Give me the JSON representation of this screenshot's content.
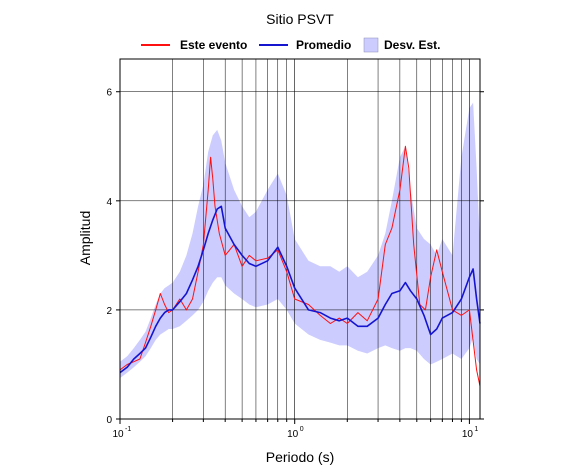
{
  "chart_data": {
    "type": "line",
    "title": "Sitio PSVT",
    "xlabel": "Periodo (s)",
    "ylabel": "Amplitud",
    "x_scale": "log",
    "xlim": [
      0.1,
      11.5
    ],
    "ylim": [
      0,
      6.6
    ],
    "grid": true,
    "legend_position": "top",
    "x_ticks": [
      {
        "base": "10",
        "exp": "-1",
        "value": 0.1
      },
      {
        "base": "10",
        "exp": "0",
        "value": 1
      },
      {
        "base": "10",
        "exp": "1",
        "value": 10
      }
    ],
    "y_ticks": [
      "0",
      "2",
      "4",
      "6"
    ],
    "y_tick_values": [
      0,
      2,
      4,
      6
    ],
    "legend": [
      {
        "label": "Este evento",
        "kind": "line",
        "color": "#ff1010"
      },
      {
        "label": "Promedio",
        "kind": "line",
        "color": "#1515d0"
      },
      {
        "label": "Desv. Est.",
        "kind": "band",
        "color": "#ccccff"
      }
    ],
    "series": [
      {
        "name": "Este evento",
        "color": "#ff1010",
        "x": [
          0.1,
          0.11,
          0.12,
          0.13,
          0.14,
          0.15,
          0.16,
          0.17,
          0.18,
          0.19,
          0.2,
          0.22,
          0.24,
          0.26,
          0.28,
          0.3,
          0.32,
          0.33,
          0.34,
          0.35,
          0.37,
          0.4,
          0.45,
          0.5,
          0.55,
          0.6,
          0.7,
          0.8,
          0.9,
          1.0,
          1.2,
          1.4,
          1.6,
          1.8,
          2.0,
          2.3,
          2.6,
          3.0,
          3.3,
          3.6,
          4.0,
          4.3,
          4.5,
          4.8,
          5.2,
          5.6,
          6.0,
          6.5,
          7.0,
          8.0,
          9.0,
          10.0,
          11.0,
          11.5
        ],
        "y": [
          0.9,
          1.0,
          1.05,
          1.1,
          1.4,
          1.7,
          2.0,
          2.3,
          2.1,
          1.95,
          2.0,
          2.2,
          2.0,
          2.2,
          2.7,
          3.2,
          4.2,
          4.8,
          4.4,
          3.9,
          3.4,
          3.0,
          3.2,
          2.8,
          3.0,
          2.9,
          2.95,
          3.1,
          2.7,
          2.2,
          2.1,
          1.9,
          1.75,
          1.85,
          1.75,
          1.95,
          1.8,
          2.2,
          3.2,
          3.5,
          4.2,
          5.0,
          4.6,
          3.2,
          2.1,
          2.0,
          2.6,
          3.1,
          2.7,
          2.0,
          1.9,
          2.0,
          0.9,
          0.6
        ]
      },
      {
        "name": "Promedio",
        "color": "#1515d0",
        "x": [
          0.1,
          0.11,
          0.12,
          0.13,
          0.14,
          0.15,
          0.16,
          0.17,
          0.18,
          0.19,
          0.2,
          0.22,
          0.24,
          0.26,
          0.28,
          0.3,
          0.32,
          0.34,
          0.36,
          0.38,
          0.4,
          0.45,
          0.5,
          0.55,
          0.6,
          0.7,
          0.8,
          0.9,
          1.0,
          1.2,
          1.4,
          1.6,
          1.8,
          2.0,
          2.3,
          2.6,
          3.0,
          3.3,
          3.6,
          4.0,
          4.3,
          4.6,
          5.0,
          5.5,
          6.0,
          6.5,
          7.0,
          8.0,
          9.0,
          10.0,
          10.5,
          11.0,
          11.5
        ],
        "y": [
          0.85,
          0.95,
          1.1,
          1.2,
          1.3,
          1.5,
          1.7,
          1.85,
          1.95,
          2.0,
          2.0,
          2.15,
          2.3,
          2.55,
          2.8,
          3.1,
          3.4,
          3.65,
          3.85,
          3.9,
          3.5,
          3.2,
          3.0,
          2.85,
          2.8,
          2.9,
          3.15,
          2.8,
          2.4,
          2.0,
          1.95,
          1.85,
          1.8,
          1.85,
          1.7,
          1.7,
          1.85,
          2.1,
          2.3,
          2.35,
          2.5,
          2.35,
          2.2,
          1.9,
          1.55,
          1.65,
          1.85,
          1.95,
          2.2,
          2.6,
          2.75,
          2.2,
          1.75
        ]
      }
    ],
    "band": {
      "name": "Desv. Est.",
      "color": "#ccccff",
      "x": [
        0.1,
        0.11,
        0.12,
        0.13,
        0.14,
        0.15,
        0.16,
        0.17,
        0.18,
        0.19,
        0.2,
        0.22,
        0.24,
        0.26,
        0.28,
        0.3,
        0.32,
        0.34,
        0.36,
        0.38,
        0.4,
        0.45,
        0.5,
        0.55,
        0.6,
        0.7,
        0.8,
        0.9,
        1.0,
        1.2,
        1.4,
        1.6,
        1.8,
        2.0,
        2.3,
        2.6,
        3.0,
        3.3,
        3.6,
        4.0,
        4.3,
        4.6,
        5.0,
        5.5,
        6.0,
        6.5,
        7.0,
        8.0,
        9.0,
        10.0,
        10.5,
        11.0,
        11.5
      ],
      "lower": [
        0.75,
        0.85,
        0.95,
        1.05,
        1.15,
        1.3,
        1.45,
        1.55,
        1.6,
        1.65,
        1.65,
        1.7,
        1.8,
        1.9,
        2.0,
        2.15,
        2.35,
        2.5,
        2.6,
        2.6,
        2.45,
        2.3,
        2.2,
        2.1,
        2.05,
        2.1,
        2.2,
        2.0,
        1.75,
        1.55,
        1.45,
        1.4,
        1.35,
        1.35,
        1.25,
        1.2,
        1.3,
        1.35,
        1.3,
        1.25,
        1.3,
        1.3,
        1.25,
        1.1,
        1.0,
        1.05,
        1.1,
        1.2,
        1.1,
        1.3,
        1.5,
        1.1,
        1.0
      ],
      "upper": [
        1.05,
        1.15,
        1.3,
        1.45,
        1.6,
        1.85,
        2.1,
        2.3,
        2.4,
        2.45,
        2.5,
        2.7,
        3.0,
        3.4,
        3.9,
        4.3,
        4.9,
        5.2,
        5.3,
        5.1,
        4.7,
        4.2,
        3.9,
        3.7,
        3.8,
        4.2,
        4.5,
        4.1,
        3.3,
        2.9,
        2.8,
        2.8,
        2.7,
        2.8,
        2.6,
        2.7,
        3.0,
        3.4,
        4.0,
        4.8,
        5.0,
        4.2,
        3.5,
        3.3,
        3.2,
        3.0,
        3.3,
        3.0,
        4.8,
        5.7,
        5.8,
        4.6,
        3.2
      ]
    }
  }
}
